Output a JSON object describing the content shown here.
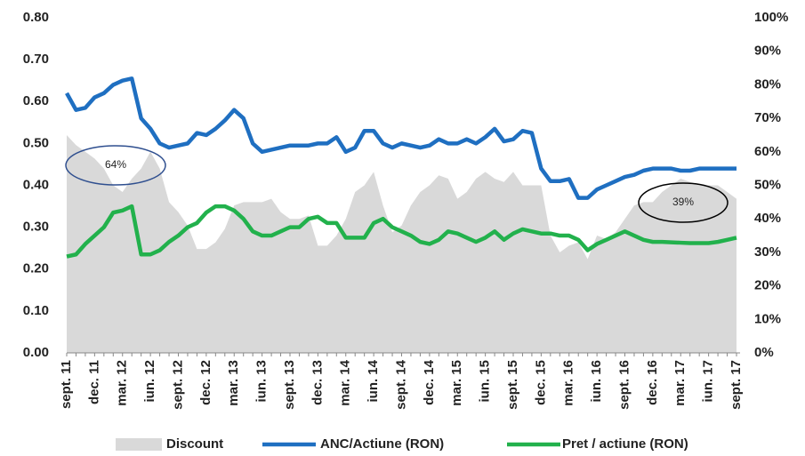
{
  "chart_data": {
    "type": "line",
    "categories": [
      "sept. 11",
      null,
      null,
      "dec. 11",
      null,
      null,
      "mar. 12",
      null,
      null,
      "iun. 12",
      null,
      null,
      "sept. 12",
      null,
      null,
      "dec. 12",
      null,
      null,
      "mar. 13",
      null,
      null,
      "iun. 13",
      null,
      null,
      "sept. 13",
      null,
      null,
      "dec. 13",
      null,
      null,
      "mar. 14",
      null,
      null,
      "iun. 14",
      null,
      null,
      "sept. 14",
      null,
      null,
      "dec. 14",
      null,
      null,
      "mar. 15",
      null,
      null,
      "iun. 15",
      null,
      null,
      "sept. 15",
      null,
      null,
      "dec. 15",
      null,
      null,
      "mar. 16",
      null,
      null,
      "iun. 16",
      null,
      null,
      "sept. 16",
      null,
      null,
      "dec. 16",
      null,
      null,
      "mar. 17",
      null,
      null,
      "iun. 17",
      null,
      null,
      "sept. 17"
    ],
    "series": [
      {
        "name": "Discount",
        "color": "#d9d9d9",
        "axis": "y2",
        "kind": "area",
        "values": [
          65,
          62,
          60,
          58,
          55,
          50,
          48,
          52,
          55,
          60,
          55,
          45,
          42,
          38,
          31,
          31,
          33,
          37,
          44,
          45,
          45,
          45,
          46,
          42,
          40,
          40,
          41,
          32,
          32,
          35,
          40,
          48,
          50,
          54,
          44,
          36,
          38,
          44,
          48,
          50,
          53,
          52,
          46,
          48,
          52,
          54,
          52,
          51,
          54,
          50,
          50,
          50,
          35,
          30,
          32,
          33,
          28,
          35,
          34,
          36,
          40,
          44,
          45,
          45,
          48,
          50,
          52,
          51,
          50,
          50,
          50,
          48,
          46
        ]
      },
      {
        "name": "ANC/Actiune (RON)",
        "color": "#1f6fc1",
        "values": [
          0.62,
          0.58,
          0.585,
          0.61,
          0.62,
          0.64,
          0.65,
          0.655,
          0.56,
          0.535,
          0.5,
          0.49,
          0.495,
          0.5,
          0.525,
          0.52,
          0.535,
          0.555,
          0.58,
          0.56,
          0.5,
          0.48,
          0.485,
          0.49,
          0.495,
          0.495,
          0.495,
          0.5,
          0.5,
          0.515,
          0.48,
          0.49,
          0.53,
          0.53,
          0.5,
          0.49,
          0.5,
          0.495,
          0.49,
          0.495,
          0.51,
          0.5,
          0.5,
          0.51,
          0.5,
          0.515,
          0.535,
          0.505,
          0.51,
          0.53,
          0.525,
          0.44,
          0.41,
          0.41,
          0.415,
          0.37,
          0.37,
          0.39,
          0.4,
          0.41,
          0.42,
          0.425,
          0.435,
          0.44,
          0.44,
          0.44,
          0.435,
          0.435,
          0.44,
          0.44,
          0.44,
          0.44,
          0.44
        ]
      },
      {
        "name": "Pret / actiune (RON)",
        "color": "#22b14c",
        "values": [
          0.23,
          0.235,
          0.26,
          0.28,
          0.3,
          0.335,
          0.34,
          0.35,
          0.235,
          0.235,
          0.245,
          0.265,
          0.28,
          0.3,
          0.31,
          0.335,
          0.35,
          0.35,
          0.34,
          0.32,
          0.29,
          0.28,
          0.28,
          0.29,
          0.3,
          0.3,
          0.32,
          0.325,
          0.31,
          0.31,
          0.275,
          0.275,
          0.275,
          0.31,
          0.32,
          0.3,
          0.29,
          0.28,
          0.265,
          0.26,
          0.27,
          0.29,
          0.285,
          0.275,
          0.265,
          0.275,
          0.29,
          0.27,
          0.285,
          0.295,
          0.29,
          0.285,
          0.285,
          0.28,
          0.28,
          0.27,
          0.245,
          0.26,
          0.27,
          0.28,
          0.29,
          0.28,
          0.27,
          0.265,
          0.265,
          0.264,
          0.263,
          0.262,
          0.262,
          0.262,
          0.265,
          0.27,
          0.275
        ]
      }
    ],
    "ylim": [
      0,
      0.8
    ],
    "yticks": [
      {
        "value": 0,
        "label": "0.00"
      },
      {
        "value": 0.1,
        "label": "0.10"
      },
      {
        "value": 0.2,
        "label": "0.20"
      },
      {
        "value": 0.3,
        "label": "0.30"
      },
      {
        "value": 0.4,
        "label": "0.40"
      },
      {
        "value": 0.5,
        "label": "0.50"
      },
      {
        "value": 0.6,
        "label": "0.60"
      },
      {
        "value": 0.7,
        "label": "0.70"
      },
      {
        "value": 0.8,
        "label": "0.80"
      }
    ],
    "y2lim": [
      0,
      100
    ],
    "y2ticks": [
      {
        "value": 0,
        "label": "0%"
      },
      {
        "value": 10,
        "label": "10%"
      },
      {
        "value": 20,
        "label": "20%"
      },
      {
        "value": 30,
        "label": "30%"
      },
      {
        "value": 40,
        "label": "40%"
      },
      {
        "value": 50,
        "label": "50%"
      },
      {
        "value": 60,
        "label": "60%"
      },
      {
        "value": 70,
        "label": "70%"
      },
      {
        "value": 80,
        "label": "80%"
      },
      {
        "value": 90,
        "label": "90%"
      },
      {
        "value": 100,
        "label": "100%"
      }
    ],
    "annotations": [
      "64%",
      "39%"
    ],
    "legend": "bottom"
  }
}
